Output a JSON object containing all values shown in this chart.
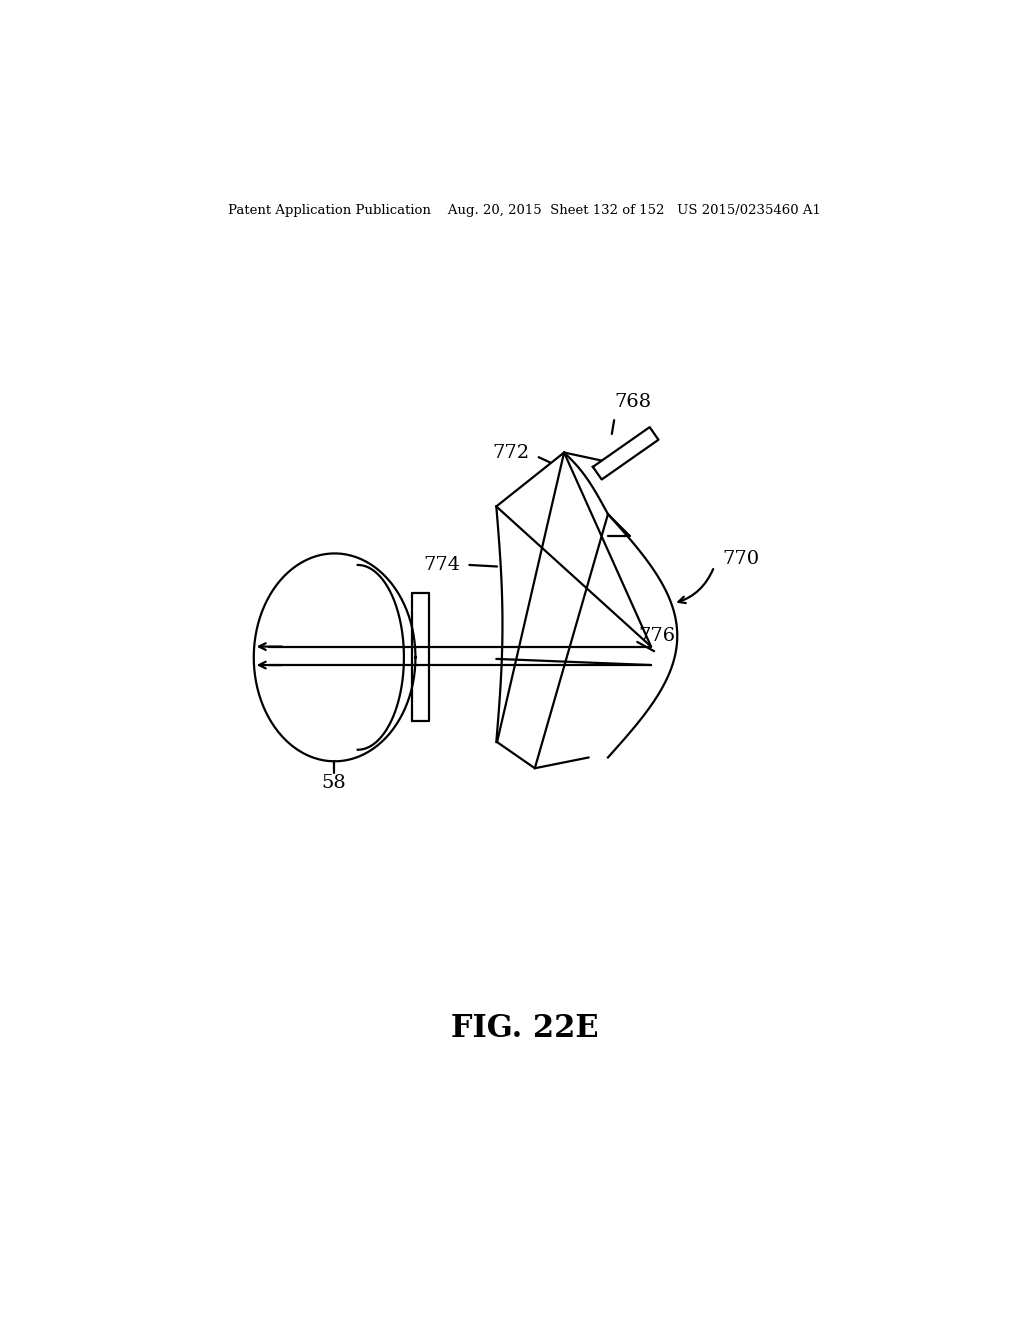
{
  "bg_color": "#ffffff",
  "line_color": "#000000",
  "header_text": "Patent Application Publication    Aug. 20, 2015  Sheet 132 of 152   US 2015/0235460 A1",
  "fig_label": "FIG. 22E",
  "lw": 1.6
}
